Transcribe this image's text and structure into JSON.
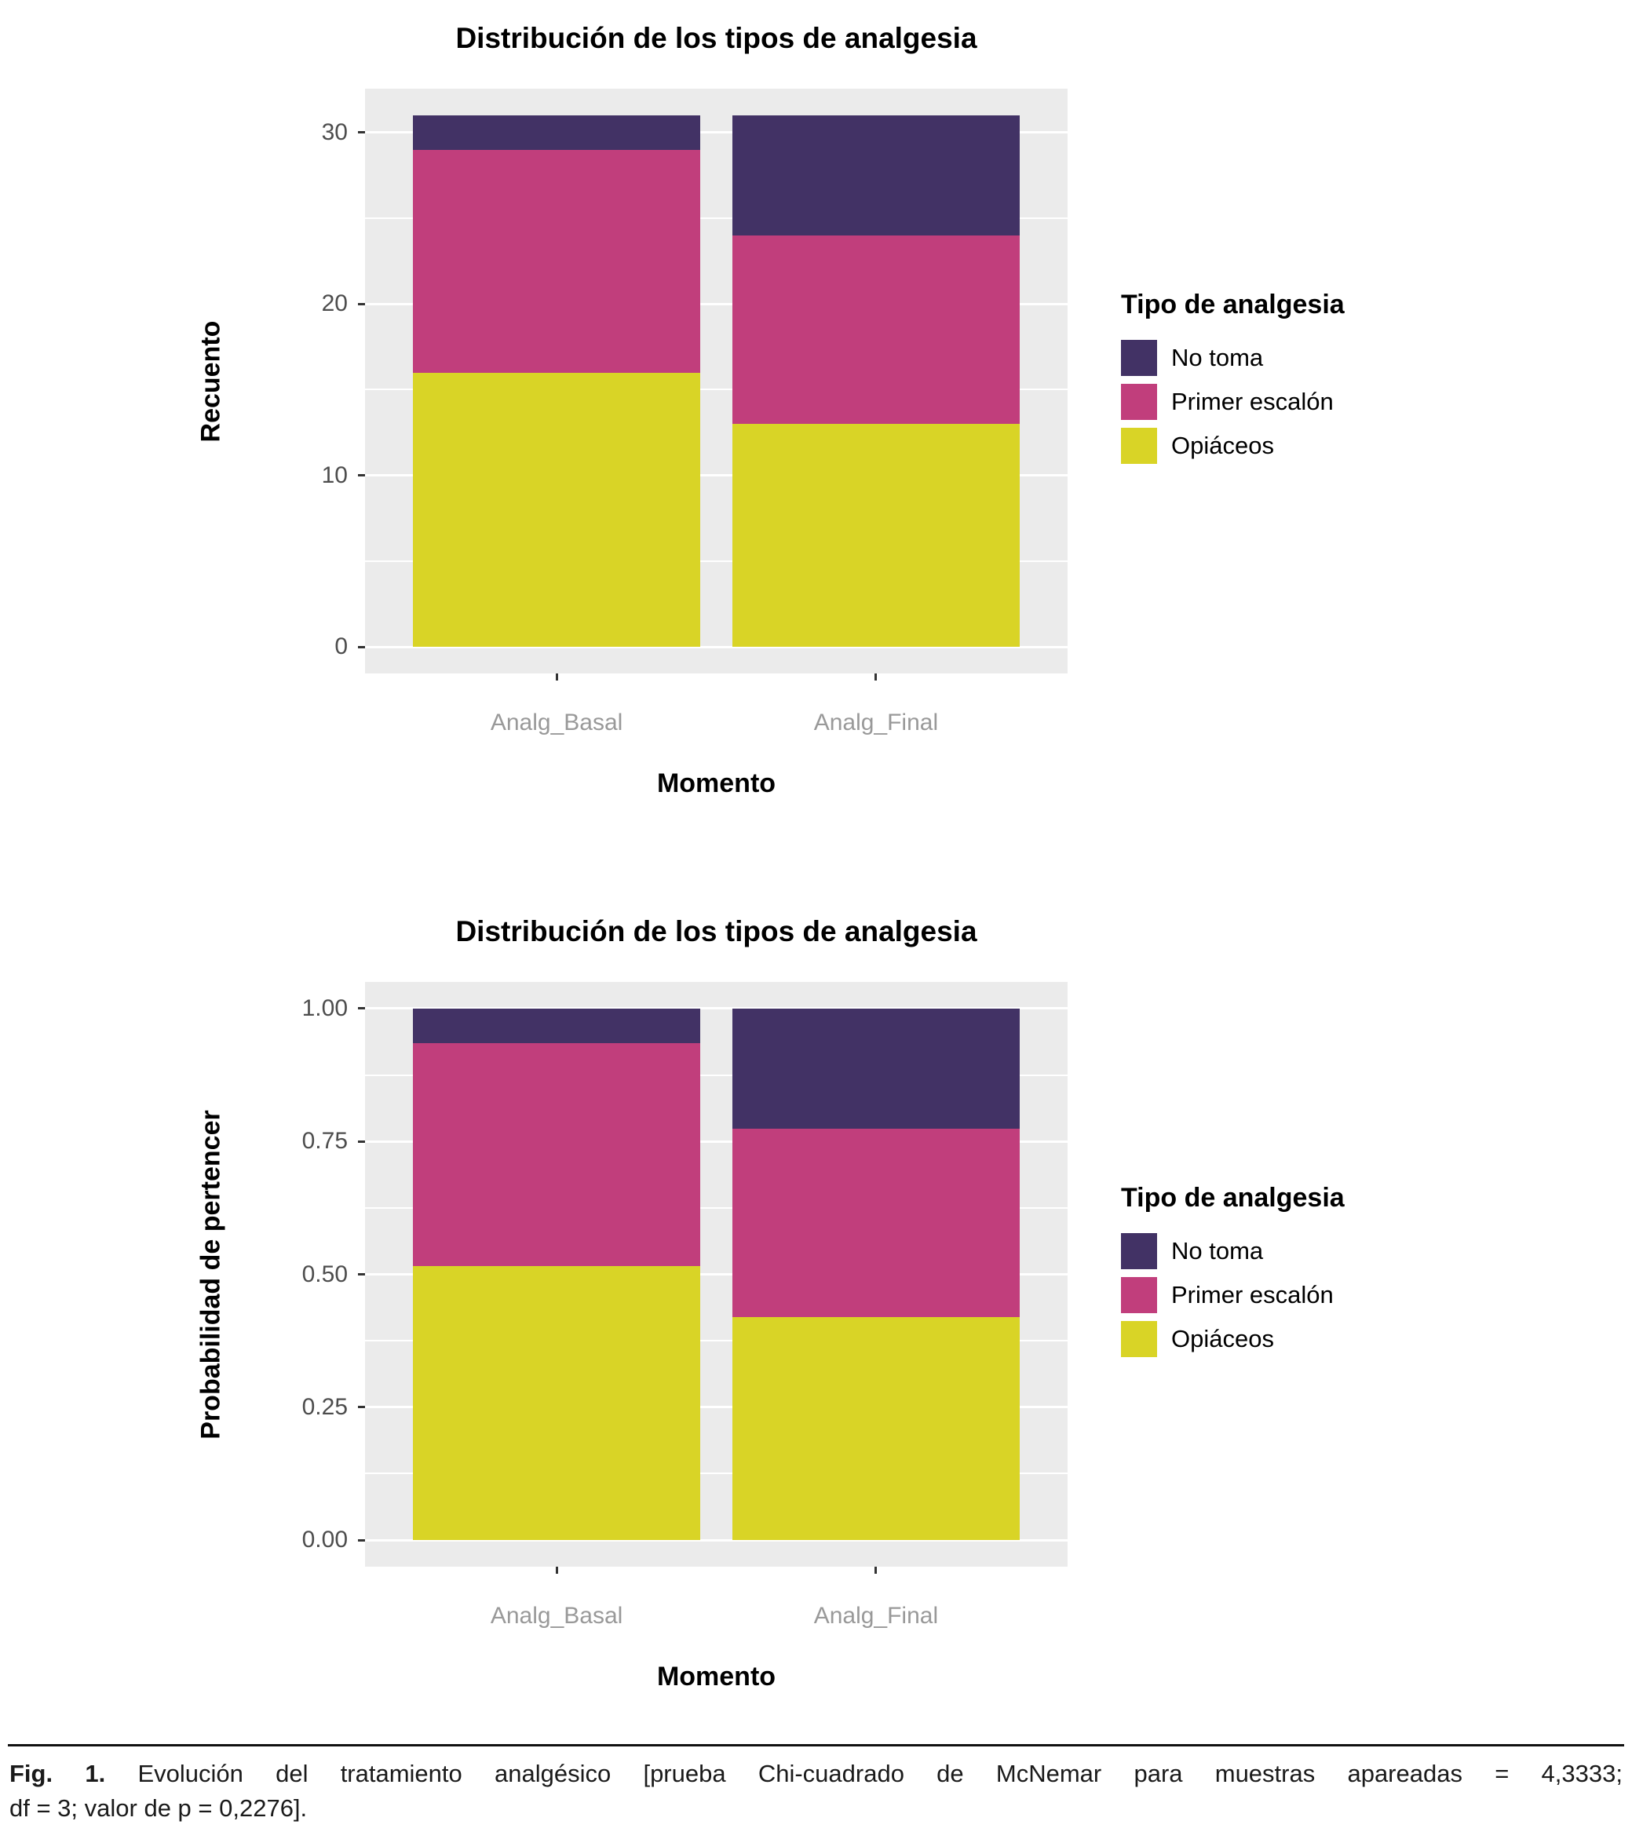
{
  "caption": {
    "label": "Fig. 1.",
    "line1": "Evolución del tratamiento analgésico [prueba Chi-cuadrado de McNemar para muestras apareadas = 4,3333;",
    "line2": "df = 3; valor de p = 0,2276]."
  },
  "colors": {
    "no_toma": "#423265",
    "primer_escalon": "#C13E7C",
    "opiaceos": "#D9D426",
    "panel_background": "#EBEBEB",
    "gridline": "#FFFFFF",
    "y_tick_text": "#4D4D4D",
    "x_tick_text": "#999999",
    "tick_mark": "#333333"
  },
  "chart_data": [
    {
      "type": "bar",
      "stacked": true,
      "title": "Distribución de los tipos de analgesia",
      "xlabel": "Momento",
      "ylabel": "Recuento",
      "categories": [
        "Analg_Basal",
        "Analg_Final"
      ],
      "series": [
        {
          "name": "Opiáceos",
          "color_key": "opiaceos",
          "values": [
            16,
            13
          ]
        },
        {
          "name": "Primer escalón",
          "color_key": "primer_escalon",
          "values": [
            13,
            11
          ]
        },
        {
          "name": "No toma",
          "color_key": "no_toma",
          "values": [
            2,
            7
          ]
        }
      ],
      "totals": [
        31,
        31
      ],
      "ylim": [
        0,
        31
      ],
      "yticks": [
        0,
        10,
        20,
        30
      ],
      "ytick_labels": [
        "0",
        "10",
        "20",
        "30"
      ],
      "grid": true,
      "legend_position": "right",
      "legend_title": "Tipo de analgesia",
      "legend_entries": [
        "No toma",
        "Primer escalón",
        "Opiáceos"
      ]
    },
    {
      "type": "bar",
      "stacked": true,
      "title": "Distribución de los tipos de analgesia",
      "xlabel": "Momento",
      "ylabel": "Probabilidad de pertencer",
      "categories": [
        "Analg_Basal",
        "Analg_Final"
      ],
      "series": [
        {
          "name": "Opiáceos",
          "color_key": "opiaceos",
          "values": [
            0.516,
            0.419
          ]
        },
        {
          "name": "Primer escalón",
          "color_key": "primer_escalon",
          "values": [
            0.419,
            0.355
          ]
        },
        {
          "name": "No toma",
          "color_key": "no_toma",
          "values": [
            0.065,
            0.226
          ]
        }
      ],
      "totals": [
        1.0,
        1.0
      ],
      "ylim": [
        0,
        1
      ],
      "yticks": [
        0,
        0.25,
        0.5,
        0.75,
        1.0
      ],
      "ytick_labels": [
        "0.00",
        "0.25",
        "0.50",
        "0.75",
        "1.00"
      ],
      "grid": true,
      "legend_position": "right",
      "legend_title": "Tipo de analgesia",
      "legend_entries": [
        "No toma",
        "Primer escalón",
        "Opiáceos"
      ]
    }
  ]
}
